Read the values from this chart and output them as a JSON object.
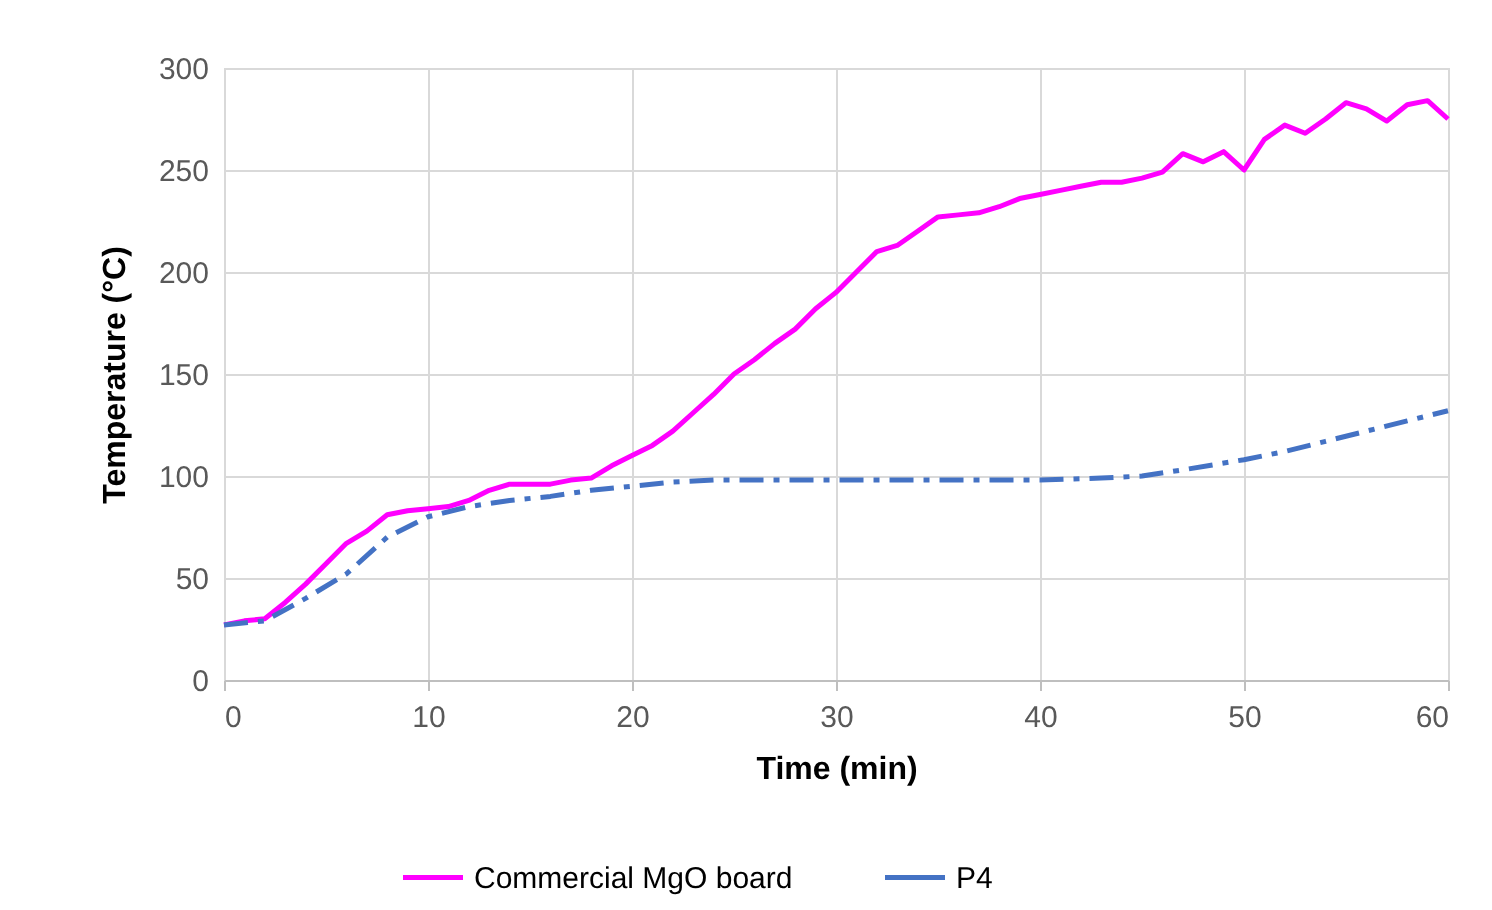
{
  "chart_data": {
    "type": "line",
    "xlabel": "Time (min)",
    "ylabel": "Temperature (°C)",
    "xlim": [
      0,
      60
    ],
    "xticks": [
      0,
      10,
      20,
      30,
      40,
      50,
      60
    ],
    "ylim": [
      0,
      300
    ],
    "yticks": [
      0,
      50,
      100,
      150,
      200,
      250,
      300
    ],
    "grid": true,
    "legend": "bottom",
    "series": [
      {
        "name": "Commercial MgO board",
        "color": "#ff00ff",
        "line_style": "solid",
        "x": [
          0,
          1,
          2,
          3,
          4,
          5,
          6,
          7,
          8,
          9,
          10,
          11,
          12,
          13,
          14,
          15,
          16,
          17,
          18,
          19,
          20,
          21,
          22,
          23,
          24,
          25,
          26,
          27,
          28,
          29,
          30,
          31,
          32,
          33,
          34,
          35,
          36,
          37,
          38,
          39,
          40,
          41,
          42,
          43,
          44,
          45,
          46,
          47,
          48,
          49,
          50,
          51,
          52,
          53,
          54,
          55,
          56,
          57,
          58,
          59,
          60
        ],
        "values": [
          27,
          29,
          30,
          38,
          47,
          57,
          67,
          73,
          81,
          83,
          84,
          85,
          88,
          93,
          96,
          96,
          96,
          98,
          99,
          105,
          110,
          115,
          122,
          131,
          140,
          150,
          157,
          165,
          172,
          182,
          190,
          200,
          210,
          213,
          220,
          227,
          228,
          229,
          232,
          236,
          238,
          240,
          242,
          244,
          244,
          246,
          249,
          258,
          254,
          259,
          250,
          265,
          272,
          268,
          275,
          283,
          280,
          274,
          282,
          284,
          275
        ]
      },
      {
        "name": "P4",
        "color": "#4472c4",
        "line_style": "dashed",
        "x": [
          0,
          2,
          4,
          6,
          8,
          10,
          12,
          14,
          16,
          18,
          20,
          22,
          24,
          30,
          40,
          43,
          45,
          47,
          50,
          52,
          54,
          56,
          58,
          60
        ],
        "values": [
          27,
          29,
          40,
          52,
          70,
          80,
          85,
          88,
          90,
          93,
          95,
          97,
          98,
          98,
          98,
          99,
          100,
          103,
          108,
          112,
          117,
          122,
          127,
          132
        ]
      }
    ]
  }
}
